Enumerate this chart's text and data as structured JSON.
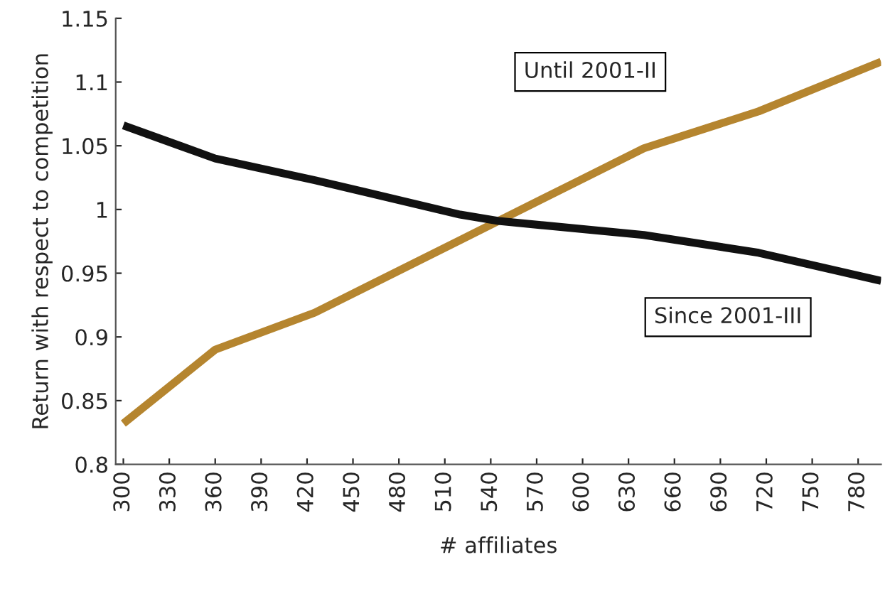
{
  "chart_data": {
    "type": "line",
    "xlabel": "# affiliates",
    "ylabel": "Return with respect to competition",
    "xlim": [
      295,
      795
    ],
    "xticks": [
      300,
      330,
      360,
      390,
      420,
      450,
      480,
      510,
      540,
      570,
      600,
      630,
      660,
      690,
      720,
      750,
      780
    ],
    "ylim": [
      0.8,
      1.15
    ],
    "yticks": [
      0.8,
      0.85,
      0.9,
      0.95,
      1,
      1.05,
      1.1,
      1.15
    ],
    "grid": false,
    "legend": false,
    "line_style": "solid",
    "marker": "none",
    "series": [
      {
        "name": "Until 2001-II",
        "color": "#b5852f",
        "x": [
          300,
          360,
          425,
          520,
          545,
          640,
          715,
          795
        ],
        "values": [
          0.832,
          0.89,
          0.919,
          0.976,
          0.991,
          1.048,
          1.077,
          1.116
        ]
      },
      {
        "name": "Since 2001-III",
        "color": "#111111",
        "x": [
          300,
          360,
          425,
          520,
          545,
          640,
          715,
          795
        ],
        "values": [
          1.066,
          1.04,
          1.023,
          0.996,
          0.991,
          0.98,
          0.966,
          0.944
        ]
      }
    ]
  }
}
